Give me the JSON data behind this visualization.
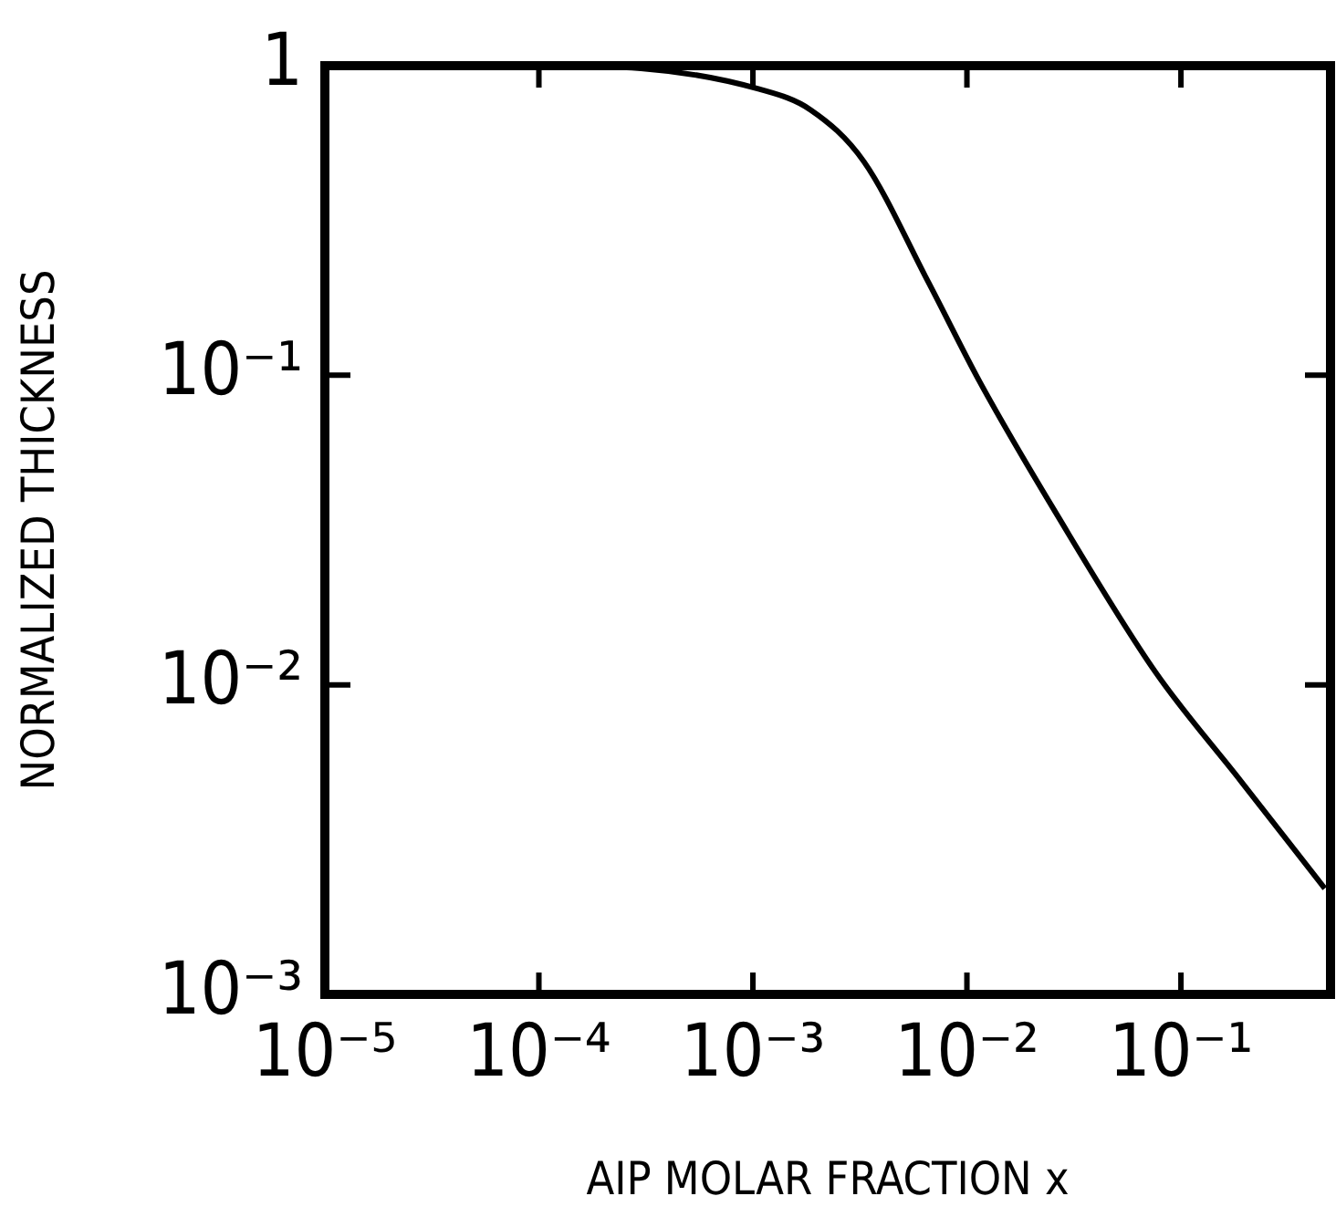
{
  "chart_data": {
    "type": "line",
    "xlabel": "AIP MOLAR FRACTION x",
    "ylabel": "NORMALIZED THICKNESS",
    "log": "xy",
    "grid": false,
    "legend": false,
    "marker": "none",
    "line_style": "solid",
    "xlim": [
      1e-05,
      0.5
    ],
    "ylim": [
      0.001,
      1
    ],
    "xticks": [
      {
        "value": 1e-05,
        "label": "10⁻⁵"
      },
      {
        "value": 0.0001,
        "label": "10⁻⁴"
      },
      {
        "value": 0.001,
        "label": "10⁻³"
      },
      {
        "value": 0.01,
        "label": "10⁻²"
      },
      {
        "value": 0.1,
        "label": "10⁻¹"
      }
    ],
    "yticks": [
      {
        "value": 0.001,
        "label": "10⁻³"
      },
      {
        "value": 0.01,
        "label": "10⁻²"
      },
      {
        "value": 0.1,
        "label": "10⁻¹"
      },
      1
    ],
    "series": [
      {
        "color": "#000000",
        "x": [
          1e-05,
          0.0001,
          0.0003,
          0.00107,
          0.00186,
          0.0033,
          0.0066,
          0.0115,
          0.026,
          0.076,
          0.19,
          0.47
        ],
        "values": [
          1,
          1,
          0.98,
          0.84,
          0.72,
          0.49,
          0.2,
          0.095,
          0.036,
          0.011,
          0.0049,
          0.0022
        ]
      }
    ]
  }
}
